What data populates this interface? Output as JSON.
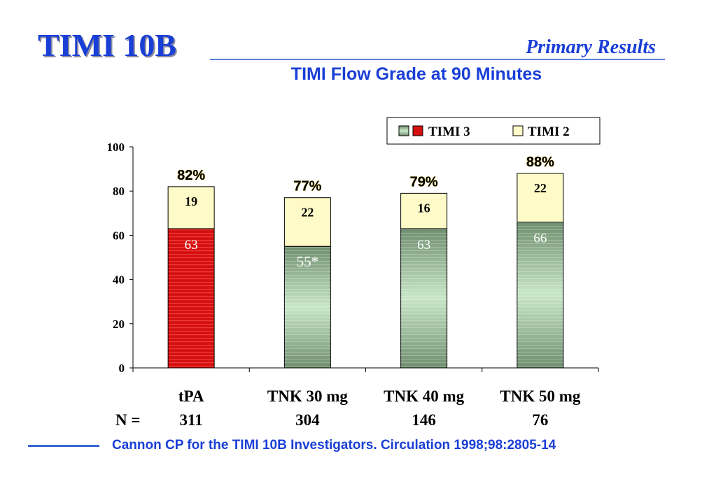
{
  "header": {
    "title": "TIMI 10B",
    "section": "Primary Results",
    "chart_title": "TIMI Flow Grade at 90 Minutes"
  },
  "n_label": "N =",
  "citation": "Cannon CP for the TIMI 10B Investigators.  Circulation 1998;98:2805-14",
  "colors": {
    "title_blue": "#1a3fd6",
    "timi3_tpa_red": "#d41010",
    "timi3_tnk_green": "#8fb48f",
    "timi2_yellow": "#fffbc8"
  },
  "chart_data": {
    "type": "bar",
    "stacked": true,
    "title": "TIMI Flow Grade at 90 Minutes",
    "categories": [
      "tPA",
      "TNK 30 mg",
      "TNK 40 mg",
      "TNK 50 mg"
    ],
    "n_values": [
      "311",
      "304",
      "146",
      "76"
    ],
    "series": [
      {
        "name": "TIMI 3",
        "values": [
          63,
          55,
          63,
          66
        ],
        "labels": [
          "63",
          "55*",
          "63",
          "66"
        ]
      },
      {
        "name": "TIMI 2",
        "values": [
          19,
          22,
          16,
          22
        ],
        "labels": [
          "19",
          "22",
          "16",
          "22"
        ]
      }
    ],
    "totals": [
      "82%",
      "77%",
      "79%",
      "88%"
    ],
    "ylim": [
      0,
      100
    ],
    "yticks": [
      "0",
      "20",
      "40",
      "60",
      "80",
      "100"
    ],
    "legend": "top-right",
    "grid": false
  }
}
